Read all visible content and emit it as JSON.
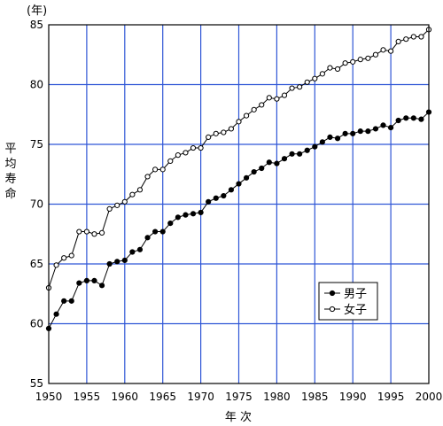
{
  "chart_data": {
    "type": "line",
    "y_unit": "(年)",
    "ylabel": "平均寿命",
    "xlabel": "年 次",
    "xlim": [
      1950,
      2000
    ],
    "ylim": [
      55,
      85
    ],
    "xticks": [
      1950,
      1955,
      1960,
      1965,
      1970,
      1975,
      1980,
      1985,
      1990,
      1995,
      2000
    ],
    "yticks": [
      55,
      60,
      65,
      70,
      75,
      80,
      85
    ],
    "grid": true,
    "legend_position": "lower-right",
    "series": [
      {
        "name": "男子",
        "marker": "filled-circle",
        "color": "#000000",
        "x": [
          1950,
          1951,
          1952,
          1953,
          1954,
          1955,
          1956,
          1957,
          1958,
          1959,
          1960,
          1961,
          1962,
          1963,
          1964,
          1965,
          1966,
          1967,
          1968,
          1969,
          1970,
          1971,
          1972,
          1973,
          1974,
          1975,
          1976,
          1977,
          1978,
          1979,
          1980,
          1981,
          1982,
          1983,
          1984,
          1985,
          1986,
          1987,
          1988,
          1989,
          1990,
          1991,
          1992,
          1993,
          1994,
          1995,
          1996,
          1997,
          1998,
          1999,
          2000
        ],
        "values": [
          59.6,
          60.8,
          61.9,
          61.9,
          63.4,
          63.6,
          63.6,
          63.2,
          65.0,
          65.2,
          65.3,
          66.0,
          66.2,
          67.2,
          67.7,
          67.7,
          68.4,
          68.9,
          69.1,
          69.2,
          69.3,
          70.2,
          70.5,
          70.7,
          71.2,
          71.7,
          72.2,
          72.7,
          73.0,
          73.5,
          73.4,
          73.8,
          74.2,
          74.2,
          74.5,
          74.8,
          75.2,
          75.6,
          75.5,
          75.9,
          75.9,
          76.1,
          76.1,
          76.3,
          76.6,
          76.4,
          77.0,
          77.2,
          77.2,
          77.1,
          77.7
        ]
      },
      {
        "name": "女子",
        "marker": "open-circle",
        "color": "#000000",
        "x": [
          1950,
          1951,
          1952,
          1953,
          1954,
          1955,
          1956,
          1957,
          1958,
          1959,
          1960,
          1961,
          1962,
          1963,
          1964,
          1965,
          1966,
          1967,
          1968,
          1969,
          1970,
          1971,
          1972,
          1973,
          1974,
          1975,
          1976,
          1977,
          1978,
          1979,
          1980,
          1981,
          1982,
          1983,
          1984,
          1985,
          1986,
          1987,
          1988,
          1989,
          1990,
          1991,
          1992,
          1993,
          1994,
          1995,
          1996,
          1997,
          1998,
          1999,
          2000
        ],
        "values": [
          63.0,
          64.9,
          65.5,
          65.7,
          67.7,
          67.7,
          67.5,
          67.6,
          69.6,
          69.9,
          70.2,
          70.8,
          71.2,
          72.3,
          72.9,
          72.9,
          73.6,
          74.1,
          74.3,
          74.7,
          74.7,
          75.6,
          75.9,
          76.0,
          76.3,
          76.9,
          77.4,
          77.9,
          78.3,
          78.9,
          78.8,
          79.1,
          79.7,
          79.8,
          80.2,
          80.5,
          80.9,
          81.4,
          81.3,
          81.8,
          81.9,
          82.1,
          82.2,
          82.5,
          82.9,
          82.8,
          83.6,
          83.8,
          84.0,
          84.0,
          84.6
        ]
      }
    ]
  }
}
